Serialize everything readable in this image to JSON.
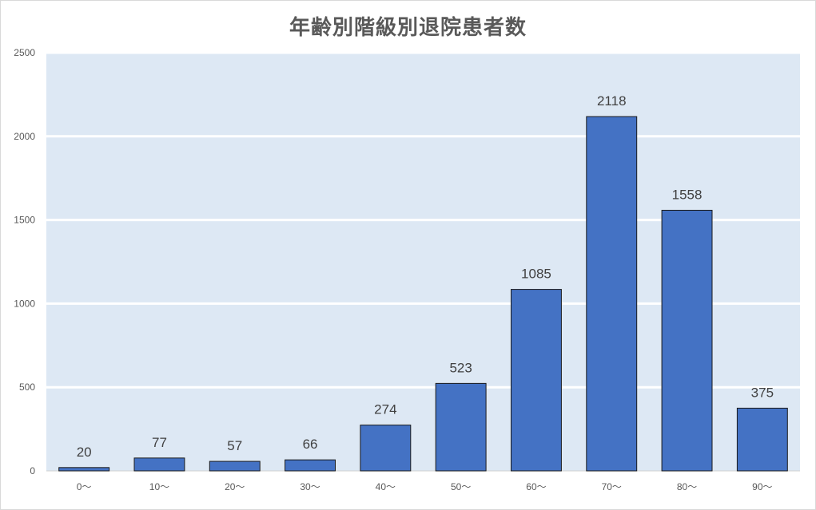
{
  "chart_data": {
    "type": "bar",
    "title": "年齢別階級別退院患者数",
    "categories": [
      "0～",
      "10～",
      "20～",
      "30～",
      "40～",
      "50～",
      "60～",
      "70～",
      "80～",
      "90～"
    ],
    "values": [
      20,
      77,
      57,
      66,
      274,
      523,
      1085,
      2118,
      1558,
      375
    ],
    "ylim": [
      0,
      2500
    ],
    "yticks": [
      0,
      500,
      1000,
      1500,
      2000,
      2500
    ],
    "xlabel": "",
    "ylabel": "",
    "grid": true,
    "legend": "none",
    "data_labels": true,
    "colors": {
      "bar": "#4472c4",
      "bar_outline": "#1a1a1a",
      "plot_background": "#dde8f4",
      "gridline": "#ffffff"
    }
  }
}
